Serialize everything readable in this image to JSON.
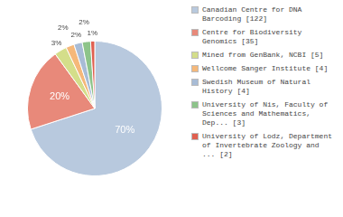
{
  "chart_data": {
    "type": "pie",
    "categories": [
      "Canadian Centre for DNA\nBarcoding [122]",
      "Centre for Biodiversity\nGenomics [35]",
      "Mined from GenBank, NCBI [5]",
      "Wellcome Sanger Institute [4]",
      "Swedish Museum of Natural\nHistory [4]",
      "University of Nis, Faculty of\nSciences and Mathematics,\nDep... [3]",
      "University of Lodz, Department\nof Invertebrate Zoology and\n... [2]"
    ],
    "values": [
      70,
      20,
      3,
      2,
      2,
      2,
      1
    ],
    "value_labels": [
      "70%",
      "20%",
      "3%",
      "2%",
      "2%",
      "2%",
      "1%"
    ],
    "colors": [
      "#b8c9de",
      "#e8897a",
      "#d4de8a",
      "#f5b87a",
      "#a8bcd6",
      "#8dc48a",
      "#e06050"
    ],
    "data_labels": true,
    "legend": "right"
  }
}
